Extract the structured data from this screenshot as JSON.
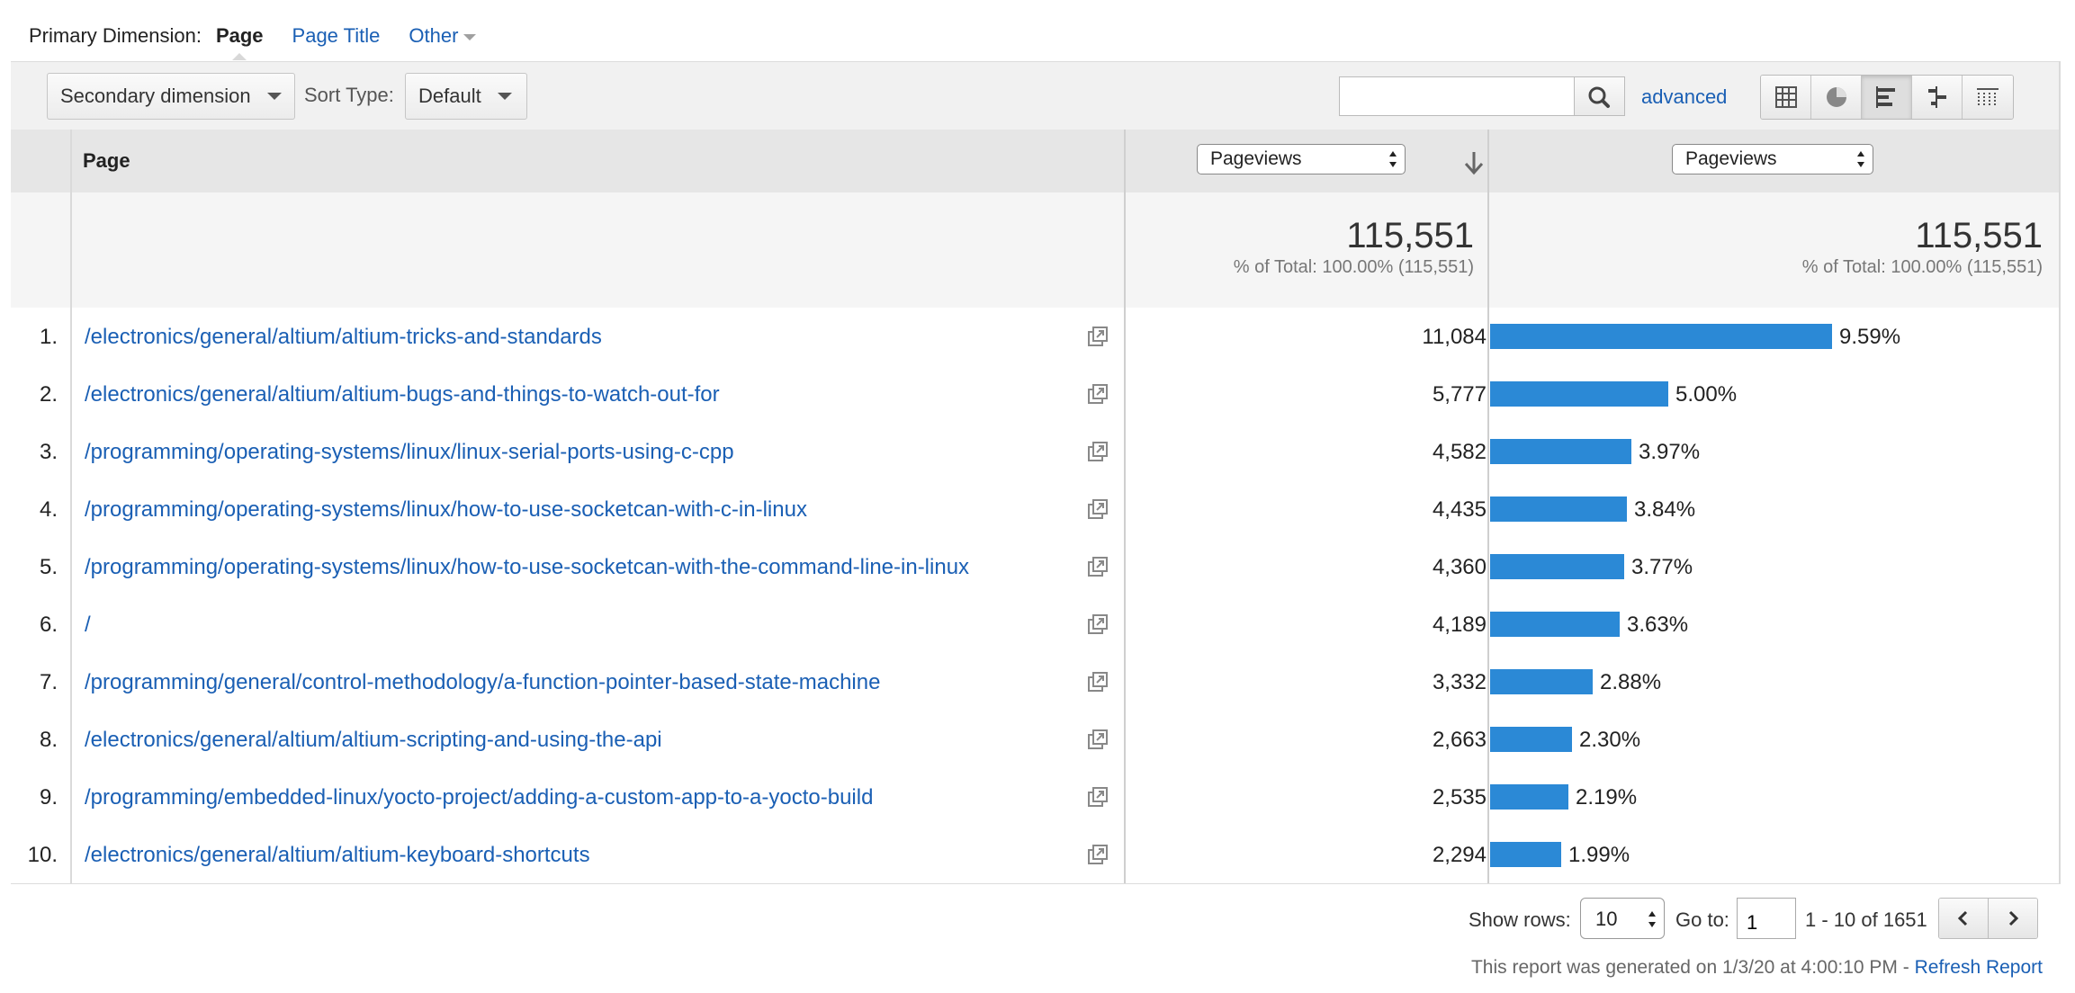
{
  "primary_dimension": {
    "label": "Primary Dimension:",
    "current": "Page",
    "options": [
      "Page Title",
      "Other"
    ]
  },
  "toolbar": {
    "secondary_dimension": "Secondary dimension",
    "sort_type_label": "Sort Type:",
    "sort_type_value": "Default",
    "search_value": "",
    "advanced_label": "advanced",
    "view_icons": [
      "grid-view-icon",
      "pie-view-icon",
      "bar-view-icon",
      "comparison-view-icon",
      "pivot-view-icon"
    ],
    "active_view": "bar-view-icon"
  },
  "table": {
    "col_page": "Page",
    "metric_1": "Pageviews",
    "metric_2": "Pageviews",
    "totals": {
      "value_1": "115,551",
      "sub_1": "% of Total: 100.00% (115,551)",
      "value_2": "115,551",
      "sub_2": "% of Total: 100.00% (115,551)"
    },
    "rows": [
      {
        "idx": "1.",
        "page": "/electronics/general/altium/altium-tricks-and-standards",
        "views": "11,084",
        "pct": "9.59%",
        "share": 9.59
      },
      {
        "idx": "2.",
        "page": "/electronics/general/altium/altium-bugs-and-things-to-watch-out-for",
        "views": "5,777",
        "pct": "5.00%",
        "share": 5.0
      },
      {
        "idx": "3.",
        "page": "/programming/operating-systems/linux/linux-serial-ports-using-c-cpp",
        "views": "4,582",
        "pct": "3.97%",
        "share": 3.97
      },
      {
        "idx": "4.",
        "page": "/programming/operating-systems/linux/how-to-use-socketcan-with-c-in-linux",
        "views": "4,435",
        "pct": "3.84%",
        "share": 3.84
      },
      {
        "idx": "5.",
        "page": "/programming/operating-systems/linux/how-to-use-socketcan-with-the-command-line-in-linux",
        "views": "4,360",
        "pct": "3.77%",
        "share": 3.77
      },
      {
        "idx": "6.",
        "page": "/",
        "views": "4,189",
        "pct": "3.63%",
        "share": 3.63
      },
      {
        "idx": "7.",
        "page": "/programming/general/control-methodology/a-function-pointer-based-state-machine",
        "views": "3,332",
        "pct": "2.88%",
        "share": 2.88
      },
      {
        "idx": "8.",
        "page": "/electronics/general/altium/altium-scripting-and-using-the-api",
        "views": "2,663",
        "pct": "2.30%",
        "share": 2.3
      },
      {
        "idx": "9.",
        "page": "/programming/embedded-linux/yocto-project/adding-a-custom-app-to-a-yocto-build",
        "views": "2,535",
        "pct": "2.19%",
        "share": 2.19
      },
      {
        "idx": "10.",
        "page": "/electronics/general/altium/altium-keyboard-shortcuts",
        "views": "2,294",
        "pct": "1.99%",
        "share": 1.99
      }
    ],
    "bar_color": "#2b89d6"
  },
  "footer": {
    "show_rows_label": "Show rows:",
    "show_rows_value": "10",
    "goto_label": "Go to:",
    "goto_value": "1",
    "range": "1 - 10 of 1651",
    "generated": "This report was generated on 1/3/20 at 4:00:10 PM - ",
    "refresh": "Refresh Report"
  }
}
